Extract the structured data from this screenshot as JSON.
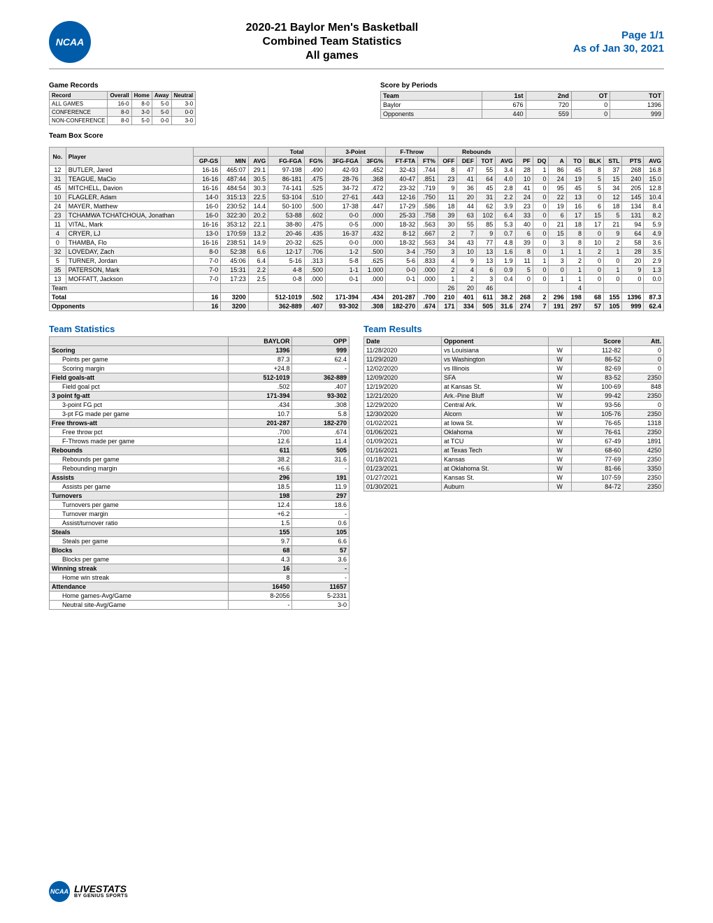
{
  "header": {
    "logo_text": "NCAA",
    "title_l1": "2020-21 Baylor Men's Basketball",
    "title_l2": "Combined Team Statistics",
    "title_l3": "All games",
    "page": "Page 1/1",
    "asof": "As of Jan 30, 2021"
  },
  "game_records": {
    "title": "Game Records",
    "cols": [
      "Record",
      "Overall",
      "Home",
      "Away",
      "Neutral"
    ],
    "rows": [
      [
        "ALL GAMES",
        "16-0",
        "8-0",
        "5-0",
        "3-0"
      ],
      [
        "CONFERENCE",
        "8-0",
        "3-0",
        "5-0",
        "0-0"
      ],
      [
        "NON-CONFERENCE",
        "8-0",
        "5-0",
        "0-0",
        "3-0"
      ]
    ]
  },
  "score_periods": {
    "title": "Score by Periods",
    "cols": [
      "Team",
      "1st",
      "2nd",
      "OT",
      "TOT"
    ],
    "rows": [
      [
        "Baylor",
        "676",
        "720",
        "0",
        "1396"
      ],
      [
        "Opponents",
        "440",
        "559",
        "0",
        "999"
      ]
    ]
  },
  "box": {
    "title": "Team Box Score",
    "header_groups": [
      "",
      "",
      "Total",
      "3-Point",
      "F-Throw",
      "Rebounds",
      "",
      "",
      "",
      "",
      "",
      "",
      ""
    ],
    "cols": [
      "No.",
      "Player",
      "GP-GS",
      "MIN",
      "AVG",
      "FG-FGA",
      "FG%",
      "3FG-FGA",
      "3FG%",
      "FT-FTA",
      "FT%",
      "OFF",
      "DEF",
      "TOT",
      "AVG",
      "PF",
      "DQ",
      "A",
      "TO",
      "BLK",
      "STL",
      "PTS",
      "AVG"
    ],
    "rows": [
      [
        "12",
        "BUTLER, Jared",
        "16-16",
        "465:07",
        "29.1",
        "97-198",
        ".490",
        "42-93",
        ".452",
        "32-43",
        ".744",
        "8",
        "47",
        "55",
        "3.4",
        "28",
        "1",
        "86",
        "45",
        "8",
        "37",
        "268",
        "16.8"
      ],
      [
        "31",
        "TEAGUE, MaCio",
        "16-16",
        "487:44",
        "30.5",
        "86-181",
        ".475",
        "28-76",
        ".368",
        "40-47",
        ".851",
        "23",
        "41",
        "64",
        "4.0",
        "10",
        "0",
        "24",
        "19",
        "5",
        "15",
        "240",
        "15.0"
      ],
      [
        "45",
        "MITCHELL, Davion",
        "16-16",
        "484:54",
        "30.3",
        "74-141",
        ".525",
        "34-72",
        ".472",
        "23-32",
        ".719",
        "9",
        "36",
        "45",
        "2.8",
        "41",
        "0",
        "95",
        "45",
        "5",
        "34",
        "205",
        "12.8"
      ],
      [
        "10",
        "FLAGLER, Adam",
        "14-0",
        "315:13",
        "22.5",
        "53-104",
        ".510",
        "27-61",
        ".443",
        "12-16",
        ".750",
        "11",
        "20",
        "31",
        "2.2",
        "24",
        "0",
        "22",
        "13",
        "0",
        "12",
        "145",
        "10.4"
      ],
      [
        "24",
        "MAYER, Matthew",
        "16-0",
        "230:52",
        "14.4",
        "50-100",
        ".500",
        "17-38",
        ".447",
        "17-29",
        ".586",
        "18",
        "44",
        "62",
        "3.9",
        "23",
        "0",
        "19",
        "16",
        "6",
        "18",
        "134",
        "8.4"
      ],
      [
        "23",
        "TCHAMWA TCHATCHOUA, Jonathan",
        "16-0",
        "322:30",
        "20.2",
        "53-88",
        ".602",
        "0-0",
        ".000",
        "25-33",
        ".758",
        "39",
        "63",
        "102",
        "6.4",
        "33",
        "0",
        "6",
        "17",
        "15",
        "5",
        "131",
        "8.2"
      ],
      [
        "11",
        "VITAL, Mark",
        "16-16",
        "353:12",
        "22.1",
        "38-80",
        ".475",
        "0-5",
        ".000",
        "18-32",
        ".563",
        "30",
        "55",
        "85",
        "5.3",
        "40",
        "0",
        "21",
        "18",
        "17",
        "21",
        "94",
        "5.9"
      ],
      [
        "4",
        "CRYER, LJ",
        "13-0",
        "170:59",
        "13.2",
        "20-46",
        ".435",
        "16-37",
        ".432",
        "8-12",
        ".667",
        "2",
        "7",
        "9",
        "0.7",
        "6",
        "0",
        "15",
        "8",
        "0",
        "9",
        "64",
        "4.9"
      ],
      [
        "0",
        "THAMBA, Flo",
        "16-16",
        "238:51",
        "14.9",
        "20-32",
        ".625",
        "0-0",
        ".000",
        "18-32",
        ".563",
        "34",
        "43",
        "77",
        "4.8",
        "39",
        "0",
        "3",
        "8",
        "10",
        "2",
        "58",
        "3.6"
      ],
      [
        "32",
        "LOVEDAY, Zach",
        "8-0",
        "52:38",
        "6.6",
        "12-17",
        ".706",
        "1-2",
        ".500",
        "3-4",
        ".750",
        "3",
        "10",
        "13",
        "1.6",
        "8",
        "0",
        "1",
        "1",
        "2",
        "1",
        "28",
        "3.5"
      ],
      [
        "5",
        "TURNER, Jordan",
        "7-0",
        "45:06",
        "6.4",
        "5-16",
        ".313",
        "5-8",
        ".625",
        "5-6",
        ".833",
        "4",
        "9",
        "13",
        "1.9",
        "11",
        "1",
        "3",
        "2",
        "0",
        "0",
        "20",
        "2.9"
      ],
      [
        "35",
        "PATERSON, Mark",
        "7-0",
        "15:31",
        "2.2",
        "4-8",
        ".500",
        "1-1",
        "1.000",
        "0-0",
        ".000",
        "2",
        "4",
        "6",
        "0.9",
        "5",
        "0",
        "0",
        "1",
        "0",
        "1",
        "9",
        "1.3"
      ],
      [
        "13",
        "MOFFATT, Jackson",
        "7-0",
        "17:23",
        "2.5",
        "0-8",
        ".000",
        "0-1",
        ".000",
        "0-1",
        ".000",
        "1",
        "2",
        "3",
        "0.4",
        "0",
        "0",
        "1",
        "1",
        "0",
        "0",
        "0",
        "0.0"
      ]
    ],
    "team_row": [
      "Team",
      "",
      "",
      "",
      "",
      "",
      "",
      "",
      "",
      "",
      "",
      "26",
      "20",
      "46",
      "",
      "",
      "",
      "",
      "4",
      "",
      "",
      "",
      ""
    ],
    "total_row": [
      "Total",
      "",
      "16",
      "3200",
      "",
      "512-1019",
      ".502",
      "171-394",
      ".434",
      "201-287",
      ".700",
      "210",
      "401",
      "611",
      "38.2",
      "268",
      "2",
      "296",
      "198",
      "68",
      "155",
      "1396",
      "87.3"
    ],
    "opp_row": [
      "Opponents",
      "",
      "16",
      "3200",
      "",
      "362-889",
      ".407",
      "93-302",
      ".308",
      "182-270",
      ".674",
      "171",
      "334",
      "505",
      "31.6",
      "274",
      "7",
      "191",
      "297",
      "57",
      "105",
      "999",
      "62.4"
    ]
  },
  "team_stats": {
    "title": "Team Statistics",
    "cols": [
      "",
      "BAYLOR",
      "OPP"
    ],
    "rows": [
      {
        "k": "Scoring",
        "b": "1396",
        "o": "999",
        "head": true
      },
      {
        "k": "Points per game",
        "b": "87.3",
        "o": "62.4",
        "indent": true
      },
      {
        "k": "Scoring margin",
        "b": "+24.8",
        "o": "-",
        "indent": true
      },
      {
        "k": "Field goals-att",
        "b": "512-1019",
        "o": "362-889",
        "head": true
      },
      {
        "k": "Field goal pct",
        "b": ".502",
        "o": ".407",
        "indent": true
      },
      {
        "k": "3 point fg-att",
        "b": "171-394",
        "o": "93-302",
        "head": true
      },
      {
        "k": "3-point FG pct",
        "b": ".434",
        "o": ".308",
        "indent": true
      },
      {
        "k": "3-pt FG made per game",
        "b": "10.7",
        "o": "5.8",
        "indent": true
      },
      {
        "k": "Free throws-att",
        "b": "201-287",
        "o": "182-270",
        "head": true
      },
      {
        "k": "Free throw pct",
        "b": ".700",
        "o": ".674",
        "indent": true
      },
      {
        "k": "F-Throws made per game",
        "b": "12.6",
        "o": "11.4",
        "indent": true
      },
      {
        "k": "Rebounds",
        "b": "611",
        "o": "505",
        "head": true
      },
      {
        "k": "Rebounds per game",
        "b": "38.2",
        "o": "31.6",
        "indent": true
      },
      {
        "k": "Rebounding margin",
        "b": "+6.6",
        "o": "-",
        "indent": true
      },
      {
        "k": "Assists",
        "b": "296",
        "o": "191",
        "head": true
      },
      {
        "k": "Assists per game",
        "b": "18.5",
        "o": "11.9",
        "indent": true
      },
      {
        "k": "Turnovers",
        "b": "198",
        "o": "297",
        "head": true
      },
      {
        "k": "Turnovers per game",
        "b": "12.4",
        "o": "18.6",
        "indent": true
      },
      {
        "k": "Turnover margin",
        "b": "+6.2",
        "o": "-",
        "indent": true
      },
      {
        "k": "Assist/turnover ratio",
        "b": "1.5",
        "o": "0.6",
        "indent": true
      },
      {
        "k": "Steals",
        "b": "155",
        "o": "105",
        "head": true
      },
      {
        "k": "Steals per game",
        "b": "9.7",
        "o": "6.6",
        "indent": true
      },
      {
        "k": "Blocks",
        "b": "68",
        "o": "57",
        "head": true
      },
      {
        "k": "Blocks per game",
        "b": "4.3",
        "o": "3.6",
        "indent": true
      },
      {
        "k": "Winning streak",
        "b": "16",
        "o": "-",
        "head": true
      },
      {
        "k": "Home win streak",
        "b": "8",
        "o": "-",
        "indent": true
      },
      {
        "k": "Attendance",
        "b": "16450",
        "o": "11657",
        "head": true
      },
      {
        "k": "Home games-Avg/Game",
        "b": "8-2056",
        "o": "5-2331",
        "indent": true
      },
      {
        "k": "Neutral site-Avg/Game",
        "b": "-",
        "o": "3-0",
        "indent": true
      }
    ]
  },
  "team_results": {
    "title": "Team Results",
    "cols": [
      "Date",
      "Opponent",
      "",
      "Score",
      "Att."
    ],
    "rows": [
      [
        "11/28/2020",
        "vs Louisiana",
        "W",
        "112-82",
        "0"
      ],
      [
        "11/29/2020",
        "vs Washington",
        "W",
        "86-52",
        "0"
      ],
      [
        "12/02/2020",
        "vs Illinois",
        "W",
        "82-69",
        "0"
      ],
      [
        "12/09/2020",
        "SFA",
        "W",
        "83-52",
        "2350"
      ],
      [
        "12/19/2020",
        "at Kansas St.",
        "W",
        "100-69",
        "848"
      ],
      [
        "12/21/2020",
        "Ark.-Pine Bluff",
        "W",
        "99-42",
        "2350"
      ],
      [
        "12/29/2020",
        "Central Ark.",
        "W",
        "93-56",
        "0"
      ],
      [
        "12/30/2020",
        "Alcorn",
        "W",
        "105-76",
        "2350"
      ],
      [
        "01/02/2021",
        "at Iowa St.",
        "W",
        "76-65",
        "1318"
      ],
      [
        "01/06/2021",
        "Oklahoma",
        "W",
        "76-61",
        "2350"
      ],
      [
        "01/09/2021",
        "at TCU",
        "W",
        "67-49",
        "1891"
      ],
      [
        "01/16/2021",
        "at Texas Tech",
        "W",
        "68-60",
        "4250"
      ],
      [
        "01/18/2021",
        "Kansas",
        "W",
        "77-69",
        "2350"
      ],
      [
        "01/23/2021",
        "at Oklahoma St.",
        "W",
        "81-66",
        "3350"
      ],
      [
        "01/27/2021",
        "Kansas St.",
        "W",
        "107-59",
        "2350"
      ],
      [
        "01/30/2021",
        "Auburn",
        "W",
        "84-72",
        "2350"
      ]
    ]
  },
  "footer": {
    "logo": "NCAA",
    "brand": "LIVESTATS",
    "sub": "BY GENIUS SPORTS"
  }
}
